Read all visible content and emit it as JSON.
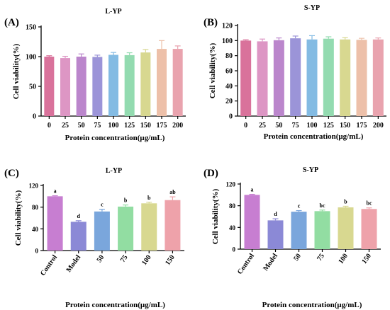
{
  "chart_data": [
    {
      "id": "A",
      "panel_label": "(A)",
      "type": "bar",
      "title": "L-YP",
      "xlabel": "Protein concentration(μg/mL)",
      "ylabel": "Cell viability(%)",
      "ylim": [
        0,
        150
      ],
      "yticks": [
        "0",
        "50",
        "100",
        "150"
      ],
      "categories": [
        "0",
        "25",
        "50",
        "75",
        "100",
        "125",
        "150",
        "175",
        "200"
      ],
      "values": [
        100,
        97.5,
        100,
        99.5,
        103,
        102.5,
        107,
        113,
        113
      ],
      "errors": [
        1.5,
        3,
        4.5,
        3,
        4,
        4,
        5,
        14,
        5
      ],
      "colors": [
        "#d9729b",
        "#dd96c4",
        "#bb86cc",
        "#9b94d8",
        "#83bbe3",
        "#93dbb0",
        "#d8d890",
        "#edc0a9",
        "#e9a3ae"
      ],
      "tick_labels_rotated": false,
      "grid": false
    },
    {
      "id": "B",
      "panel_label": "(B)",
      "type": "bar",
      "title": "S-YP",
      "xlabel": "Protein concentration(μg/mL)",
      "ylabel": "Cell viability(%)",
      "ylim": [
        0,
        120
      ],
      "yticks": [
        "0",
        "20",
        "40",
        "60",
        "80",
        "100",
        "120"
      ],
      "categories": [
        "0",
        "25",
        "50",
        "75",
        "100",
        "125",
        "150",
        "175",
        "200"
      ],
      "values": [
        100,
        99,
        100.5,
        103,
        101.5,
        102.5,
        101.5,
        101,
        101.5
      ],
      "errors": [
        1,
        3,
        3,
        3,
        5,
        2.5,
        2.5,
        2,
        2
      ],
      "colors": [
        "#d9729b",
        "#dd96c4",
        "#bb86cc",
        "#9b94d8",
        "#83bbe3",
        "#93dbb0",
        "#d8d890",
        "#edc0a9",
        "#e9a3ae"
      ],
      "tick_labels_rotated": false,
      "grid": false
    },
    {
      "id": "C",
      "panel_label": "(C)",
      "type": "bar",
      "title": "L-YP",
      "xlabel": "Protein concentration(μg/mL)",
      "ylabel": "Cell viability(%)",
      "ylim": [
        0,
        120
      ],
      "yticks": [
        "0",
        "40",
        "80",
        "120"
      ],
      "categories": [
        "Control",
        "Model",
        "50",
        "75",
        "100",
        "150"
      ],
      "values": [
        100,
        53,
        72,
        81,
        87,
        93
      ],
      "errors": [
        1,
        2,
        4,
        3,
        2,
        6
      ],
      "letters": [
        "a",
        "d",
        "c",
        "b",
        "b",
        "ab"
      ],
      "colors": [
        "#c77ed1",
        "#8b89d6",
        "#7aa6dc",
        "#92dda2",
        "#d8d890",
        "#eea2aa"
      ],
      "tick_labels_rotated": true,
      "grid": false
    },
    {
      "id": "D",
      "panel_label": "(D)",
      "type": "bar",
      "title": "S-YP",
      "xlabel": "Protein concentration(μg/mL)",
      "ylabel": "Cell viability(%)",
      "ylim": [
        0,
        120
      ],
      "yticks": [
        "0",
        "40",
        "80",
        "120"
      ],
      "categories": [
        "Control",
        "Model",
        "50",
        "75",
        "100",
        "150"
      ],
      "values": [
        100,
        53,
        69,
        70,
        77,
        74
      ],
      "errors": [
        1,
        3,
        2,
        2,
        2,
        2
      ],
      "letters": [
        "a",
        "d",
        "c",
        "bc",
        "b",
        "bc"
      ],
      "colors": [
        "#c77ed1",
        "#8b89d6",
        "#7aa6dc",
        "#92dda2",
        "#d8d890",
        "#eea2aa"
      ],
      "tick_labels_rotated": true,
      "grid": false
    }
  ]
}
